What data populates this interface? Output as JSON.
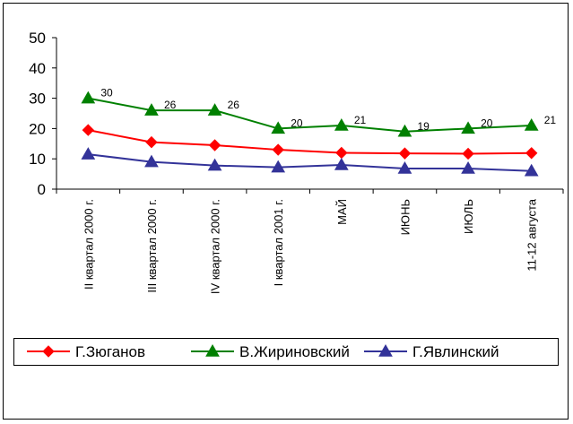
{
  "chart_data": {
    "type": "line",
    "categories": [
      "II квартал 2000 г.",
      "III квартал 2000 г.",
      "IV квартал 2000 г.",
      "I квартал 2001 г.",
      "МАЙ",
      "ИЮНЬ",
      "ИЮЛЬ",
      "11-12 августа"
    ],
    "series": [
      {
        "name": "Г.Зюганов",
        "values": [
          19.5,
          15.5,
          14.5,
          13,
          12,
          11.8,
          11.7,
          11.9
        ],
        "color": "#ff0000",
        "marker": "diamond",
        "labels": false
      },
      {
        "name": "В.Жириновский",
        "values": [
          30,
          26,
          26,
          20,
          21,
          19,
          20,
          21
        ],
        "color": "#008000",
        "marker": "triangle",
        "labels": true
      },
      {
        "name": "Г.Явлинский",
        "values": [
          11.5,
          9,
          7.8,
          7.2,
          8,
          6.8,
          6.8,
          6
        ],
        "color": "#333399",
        "marker": "triangle",
        "labels": false
      }
    ],
    "ylim": [
      0,
      50
    ],
    "yticks": [
      0,
      10,
      20,
      30,
      40,
      50
    ],
    "grid": false,
    "legend": "bottom"
  }
}
